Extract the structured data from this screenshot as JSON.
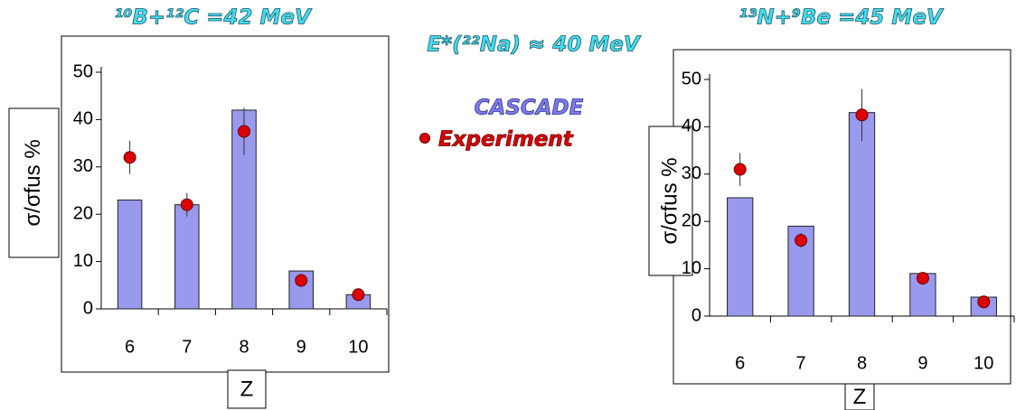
{
  "annotation": "E*(²²Na) ≈ 40 MeV",
  "legend": [
    {
      "name": "CASCADE",
      "color": "#7b7bee"
    },
    {
      "name": "Experiment",
      "color": "#dd0000"
    }
  ],
  "chart_data": [
    {
      "type": "bar",
      "title": "¹⁰B+¹²C =42 MeV",
      "x_label": "Z",
      "y_label": "σ/σfus %",
      "categories": [
        "6",
        "7",
        "8",
        "9",
        "10"
      ],
      "series": [
        {
          "color": "#9999ee",
          "values": [
            23,
            22,
            42,
            8,
            3
          ]
        },
        {
          "color": "#dd0000",
          "values": [
            32,
            22,
            37.5,
            6,
            3
          ],
          "errors": [
            3.5,
            2.5,
            5,
            0.5,
            0.5
          ]
        }
      ],
      "ylim": [
        0,
        50
      ],
      "yticks": [
        0,
        10,
        20,
        30,
        40,
        50
      ]
    },
    {
      "type": "bar",
      "title": "¹³N+⁹Be =45 MeV",
      "x_label": "Z",
      "y_label": "σ/σfus %",
      "categories": [
        "6",
        "7",
        "8",
        "9",
        "10"
      ],
      "series": [
        {
          "color": "#9999ee",
          "values": [
            25,
            19,
            43,
            9,
            4
          ]
        },
        {
          "color": "#dd0000",
          "values": [
            31,
            16,
            42.5,
            8,
            3
          ],
          "errors": [
            3.5,
            1.5,
            5.5,
            0.5,
            0.5
          ]
        }
      ],
      "ylim": [
        0,
        50
      ],
      "yticks": [
        0,
        10,
        20,
        30,
        40,
        50
      ]
    }
  ]
}
